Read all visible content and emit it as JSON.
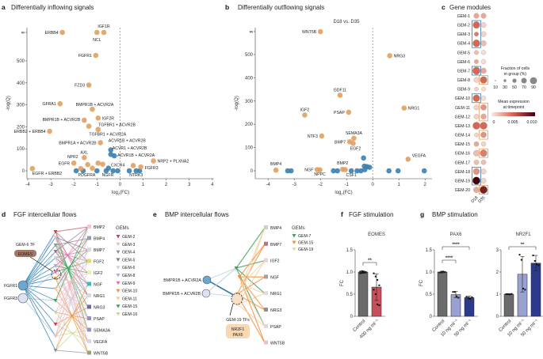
{
  "chart_data": [
    {
      "panel": "a",
      "type": "scatter",
      "title": "Differentially inflowing signals",
      "xlabel": "log2(FC)",
      "ylabel": "-log(Q)",
      "xlim": [
        -4,
        4
      ],
      "xticks": [
        -4,
        -3,
        -2,
        -1,
        0,
        1,
        2,
        3,
        4
      ],
      "yticks": [
        "0",
        "100",
        "200",
        "300",
        "400",
        "500",
        "∞"
      ],
      "ylim": [
        0,
        600
      ],
      "colors": {
        "significant": "#e0a060",
        "not_significant": "#3a7fb0"
      },
      "points": [
        {
          "label": "ERBB4",
          "x": -2.5,
          "y": "inf",
          "sig": true
        },
        {
          "label": "IGF1R",
          "x": -0.7,
          "y": "inf",
          "sig": true
        },
        {
          "label": "NCL",
          "x": -1.0,
          "y": "inf",
          "sig": true
        },
        {
          "label": "FGFR1",
          "x": -1.05,
          "y": 525,
          "sig": true
        },
        {
          "label": "FZD3",
          "x": -1.35,
          "y": 390,
          "sig": true
        },
        {
          "label": "GFRA1",
          "x": -2.6,
          "y": 305,
          "sig": true
        },
        {
          "label": "BMPR1B + ACVR2A",
          "x": -1.2,
          "y": 280,
          "sig": true
        },
        {
          "label": "BMPR1B + ACVR2B",
          "x": -1.55,
          "y": 230,
          "sig": true
        },
        {
          "label": "IGF2R",
          "x": -0.95,
          "y": 240,
          "sig": true
        },
        {
          "label": "TGFBR1 + ACVR2B",
          "x": -1.35,
          "y": 203,
          "sig": true
        },
        {
          "label": "ERBB2 + ERBB4",
          "x": -3.05,
          "y": 180,
          "sig": true
        },
        {
          "label": "TGFBR1 + ACVR2A",
          "x": -0.95,
          "y": 188,
          "sig": true
        },
        {
          "label": "BMPR1A + ACVR2B",
          "x": -0.85,
          "y": 128,
          "sig": true
        },
        {
          "label": "AXL",
          "x": -1.55,
          "y": 60,
          "sig": true
        },
        {
          "label": "NPR2",
          "x": -1.4,
          "y": 28,
          "sig": true
        },
        {
          "label": "EGFR",
          "x": -2.0,
          "y": 35,
          "sig": true
        },
        {
          "label": "EGFR + ERBB2",
          "x": -3.8,
          "y": 10,
          "sig": true
        },
        {
          "label": "NRP2 + PLXNA2",
          "x": 1.45,
          "y": 45,
          "sig": true
        },
        {
          "label": "FGFR3",
          "x": 0.9,
          "y": 18,
          "sig": true
        },
        {
          "label": "",
          "x": 0.57,
          "y": 24,
          "sig": true
        },
        {
          "label": "",
          "x": -1.7,
          "y": 10,
          "sig": true
        },
        {
          "label": "",
          "x": -1.2,
          "y": 12,
          "sig": true
        },
        {
          "label": "",
          "x": -0.95,
          "y": 35,
          "sig": true
        },
        {
          "label": "",
          "x": -0.75,
          "y": 30,
          "sig": true
        },
        {
          "label": "ACVR1B + ACVR2B",
          "x": -0.4,
          "y": 95,
          "sig": false
        },
        {
          "label": "ACVR1 + ACVR2B",
          "x": -0.4,
          "y": 75,
          "sig": false
        },
        {
          "label": "ACVR1B + ACVR2A",
          "x": -0.25,
          "y": 68,
          "sig": false
        },
        {
          "label": "CXCR4",
          "x": -0.5,
          "y": 12,
          "sig": false
        },
        {
          "label": "PDGFRA",
          "x": -1.0,
          "y": 0,
          "sig": false
        },
        {
          "label": "NGFR",
          "x": -0.6,
          "y": 0,
          "sig": false
        },
        {
          "label": "NTRK3",
          "x": 0.7,
          "y": 0,
          "sig": false
        },
        {
          "label": "",
          "x": -1.9,
          "y": 0,
          "sig": false
        },
        {
          "label": "",
          "x": -1.6,
          "y": 0,
          "sig": false
        },
        {
          "label": "",
          "x": -0.3,
          "y": 0,
          "sig": false
        },
        {
          "label": "",
          "x": -0.1,
          "y": 0,
          "sig": false
        },
        {
          "label": "",
          "x": 0.4,
          "y": 0,
          "sig": false
        },
        {
          "label": "",
          "x": 0.85,
          "y": 0,
          "sig": false
        }
      ]
    },
    {
      "panel": "b",
      "type": "scatter",
      "title": "Differentially outflowing signals",
      "subtitle": "D18 vs. D35",
      "xlabel": "log2(FC)",
      "ylabel": "-log(Q)",
      "xlim": [
        -4.4,
        2.3
      ],
      "xticks": [
        -4,
        -3,
        -2,
        -1,
        0,
        1,
        2
      ],
      "yticks": [
        "0",
        "100",
        "200",
        "300",
        "400",
        "500",
        "∞"
      ],
      "ylim": [
        0,
        600
      ],
      "points": [
        {
          "label": "WNT5B",
          "x": -2.0,
          "y": "inf",
          "sig": true
        },
        {
          "label": "NRG3",
          "x": 0.65,
          "y": 495,
          "sig": true
        },
        {
          "label": "GDF11",
          "x": -1.25,
          "y": 325,
          "sig": true
        },
        {
          "label": "NRG1",
          "x": 1.2,
          "y": 270,
          "sig": true
        },
        {
          "label": "IGF2",
          "x": -2.6,
          "y": 240,
          "sig": true
        },
        {
          "label": "PSAP",
          "x": -0.92,
          "y": 252,
          "sig": true
        },
        {
          "label": "NTF3",
          "x": -1.95,
          "y": 150,
          "sig": true
        },
        {
          "label": "SEMA3A",
          "x": -0.72,
          "y": 140,
          "sig": true
        },
        {
          "label": "BMP7",
          "x": -0.88,
          "y": 125,
          "sig": true
        },
        {
          "label": "EGF2",
          "x": -0.75,
          "y": 118,
          "sig": true
        },
        {
          "label": "VEGFA",
          "x": 1.35,
          "y": 50,
          "sig": true
        },
        {
          "label": "BMP4",
          "x": -3.7,
          "y": 3,
          "sig": true
        },
        {
          "label": "NGF",
          "x": -2.12,
          "y": 5,
          "sig": true
        },
        {
          "label": "NPPC",
          "x": -2.02,
          "y": 4,
          "sig": true
        },
        {
          "label": "BMP2",
          "x": -1.15,
          "y": 6,
          "sig": true
        },
        {
          "label": "",
          "x": -1.05,
          "y": 5,
          "sig": true
        },
        {
          "label": "CSF1",
          "x": -0.82,
          "y": 0,
          "sig": false
        },
        {
          "label": "",
          "x": -3.25,
          "y": 0,
          "sig": false
        },
        {
          "label": "",
          "x": -3.12,
          "y": 0,
          "sig": false
        },
        {
          "label": "",
          "x": -1.5,
          "y": 0,
          "sig": false
        },
        {
          "label": "",
          "x": -1.35,
          "y": 0,
          "sig": false
        },
        {
          "label": "",
          "x": -0.6,
          "y": 0,
          "sig": false
        },
        {
          "label": "",
          "x": -0.45,
          "y": 0,
          "sig": false
        },
        {
          "label": "",
          "x": -0.35,
          "y": 55,
          "sig": false
        },
        {
          "label": "",
          "x": -0.32,
          "y": 20,
          "sig": false
        },
        {
          "label": "",
          "x": -0.22,
          "y": 18,
          "sig": false
        },
        {
          "label": "",
          "x": -0.12,
          "y": 15,
          "sig": false
        },
        {
          "label": "",
          "x": -0.3,
          "y": 5,
          "sig": false
        },
        {
          "label": "",
          "x": 0.62,
          "y": 0,
          "sig": false
        },
        {
          "label": "",
          "x": 0.97,
          "y": 0,
          "sig": false
        },
        {
          "label": "",
          "x": 1.97,
          "y": 0,
          "sig": false
        }
      ]
    },
    {
      "panel": "c",
      "type": "heatmap",
      "title": "Gene modules",
      "columns": [
        "D18",
        "D35"
      ],
      "size_legend": {
        "title": "Fraction of cells in group (%)",
        "values": [
          "10",
          "30",
          "50",
          "70",
          "90"
        ]
      },
      "color_legend": {
        "title": "Mean expression at timepoint",
        "ticks": [
          "0",
          "0.005",
          "0.010"
        ]
      },
      "rows": [
        {
          "gem": "GEM-1",
          "d18": [
            50,
            0.003
          ],
          "d35": [
            50,
            0.003
          ]
        },
        {
          "gem": "GEM-2",
          "d18": [
            80,
            0.006
          ],
          "d35": [
            50,
            0.001
          ],
          "box": "D18"
        },
        {
          "gem": "GEM-3",
          "d18": [
            35,
            0.005
          ],
          "d35": [
            50,
            0.001
          ],
          "box": "D18"
        },
        {
          "gem": "GEM-4",
          "d18": [
            85,
            0.006
          ],
          "d35": [
            55,
            0.002
          ],
          "box": "D18"
        },
        {
          "gem": "GEM-5",
          "d18": [
            35,
            0.002
          ],
          "d35": [
            40,
            0.0005
          ]
        },
        {
          "gem": "GEM-6",
          "d18": [
            35,
            0.003
          ],
          "d35": [
            40,
            0.0005
          ]
        },
        {
          "gem": "GEM-7",
          "d18": [
            90,
            0.006
          ],
          "d35": [
            55,
            0.003
          ],
          "box": "D18"
        },
        {
          "gem": "GEM-8",
          "d18": [
            50,
            0.001
          ],
          "d35": [
            80,
            0.006
          ],
          "box": "D35"
        },
        {
          "gem": "GEM-9",
          "d18": [
            30,
            0.001
          ],
          "d35": [
            30,
            0.0005
          ]
        },
        {
          "gem": "GEM-10",
          "d18": [
            80,
            0.006
          ],
          "d35": [
            40,
            0.0005
          ],
          "box": "D18"
        },
        {
          "gem": "GEM-11",
          "d18": [
            50,
            0.001
          ],
          "d35": [
            60,
            0.004
          ],
          "box": "D35"
        },
        {
          "gem": "GEM-12",
          "d18": [
            45,
            0.001
          ],
          "d35": [
            55,
            0.003
          ],
          "box": "D35"
        },
        {
          "gem": "GEM-13",
          "d18": [
            85,
            0.006
          ],
          "d35": [
            85,
            0.006
          ]
        },
        {
          "gem": "GEM-14",
          "d18": [
            30,
            0.001
          ],
          "d35": [
            60,
            0.004
          ],
          "box": "D35"
        },
        {
          "gem": "GEM-15",
          "d18": [
            45,
            0.003
          ],
          "d35": [
            40,
            0.001
          ]
        },
        {
          "gem": "GEM-16",
          "d18": [
            65,
            0.002
          ],
          "d35": [
            80,
            0.005
          ],
          "box": "D35"
        },
        {
          "gem": "GEM-17",
          "d18": [
            45,
            0.002
          ],
          "d35": [
            45,
            0.002
          ]
        },
        {
          "gem": "GEM-18",
          "d18": [
            70,
            0.004
          ],
          "d35": [
            50,
            0.001
          ],
          "box": "D18"
        },
        {
          "gem": "GEM-19",
          "d18": [
            90,
            0.012
          ],
          "d35": [
            50,
            0.001
          ],
          "box": "D18"
        },
        {
          "gem": "GEM-20",
          "d18": [
            60,
            0.003
          ],
          "d35": [
            90,
            0.01
          ],
          "box": "D35"
        }
      ]
    },
    {
      "panel": "f",
      "type": "bar",
      "title": "FGF stimulation",
      "subtitle": "EOMES",
      "ylabel": "FC",
      "ylim": [
        0,
        1.5
      ],
      "yticks": [
        "0",
        "0.5",
        "1.0",
        "1.5"
      ],
      "categories": [
        "Control",
        "400 ng ml⁻¹"
      ],
      "values": [
        1.0,
        0.66
      ],
      "errors": [
        0.03,
        0.3
      ],
      "colors": [
        "#6b6b6b",
        "#c8505a"
      ],
      "points": [
        [
          0.97,
          0.98,
          0.99,
          1.0,
          1.01,
          1.02,
          1.0,
          0.99
        ],
        [
          0.97,
          0.9,
          0.82,
          0.7,
          0.6,
          0.5,
          0.27,
          0.25
        ]
      ],
      "significance": [
        {
          "pair": [
            0,
            1
          ],
          "label": "**"
        }
      ]
    },
    {
      "panel": "g",
      "type": "bar",
      "title": "BMP stimulation",
      "subtitle": "PAX6",
      "ylabel": "FC",
      "ylim": [
        0,
        1.5
      ],
      "yticks": [
        "0",
        "0.5",
        "1.0",
        "1.5"
      ],
      "categories": [
        "Control",
        "10 ng ml⁻¹",
        "50 ng ml⁻¹"
      ],
      "values": [
        1.0,
        0.49,
        0.42
      ],
      "errors": [
        0.02,
        0.07,
        0.04
      ],
      "colors": [
        "#6b6b6b",
        "#9aa0d0",
        "#2c3a8c"
      ],
      "points": [
        [
          0.99,
          1.0,
          1.01,
          1.0
        ],
        [
          0.55,
          0.55,
          0.45,
          0.42
        ],
        [
          0.44,
          0.42,
          0.4,
          0.43
        ]
      ],
      "significance": [
        {
          "pair": [
            0,
            1
          ],
          "label": "****"
        },
        {
          "pair": [
            0,
            2
          ],
          "label": "****"
        }
      ]
    },
    {
      "panel": "g",
      "type": "bar",
      "subtitle": "NR2F1",
      "ylim": [
        0,
        3
      ],
      "yticks": [
        "0",
        "1",
        "2",
        "3"
      ],
      "categories": [
        "Control",
        "10 ng ml⁻¹",
        "50 ng ml⁻¹"
      ],
      "values": [
        1.0,
        1.9,
        2.4
      ],
      "errors": [
        0.02,
        0.8,
        0.35
      ],
      "colors": [
        "#6b6b6b",
        "#9aa0d0",
        "#2c3a8c"
      ],
      "points": [
        [
          1.0,
          1.0,
          0.99,
          1.01
        ],
        [
          2.78,
          2.55,
          1.25,
          1.2
        ],
        [
          2.75,
          2.5,
          2.35,
          2.3
        ]
      ],
      "significance": [
        {
          "pair": [
            0,
            2
          ],
          "label": "**"
        }
      ]
    }
  ],
  "panel_d": {
    "letter": "d",
    "title": "FGF intercellular flows",
    "receptors": [
      "FGFR1",
      "FGFR3"
    ],
    "tf_label": "GEM-6 TF",
    "tf": "EOMES",
    "ligands": [
      "BMP2",
      "BMP4",
      "BMP7",
      "FGF2",
      "IGF2",
      "NGF",
      "NRG1",
      "NRG3",
      "PSAP",
      "SEMA3A",
      "VEGFA",
      "WNT5B"
    ],
    "ligand_colors": [
      "#f2c6d4",
      "#9a9aa8",
      "#d9d9e6",
      "#e2d870",
      "#eeeeb8",
      "#40b8c0",
      "#d0dcec",
      "#6a6aa0",
      "#9a90b8",
      "#a090c0",
      "#e0d0e8",
      "#a0a070"
    ],
    "gems_title": "GEMs",
    "gems": [
      {
        "name": "GEM-2",
        "color": "#d04050"
      },
      {
        "name": "GEM-3",
        "color": "#f0b8c0"
      },
      {
        "name": "GEM-4",
        "color": "#9090a8"
      },
      {
        "name": "GEM-5",
        "color": "#8a7a8a"
      },
      {
        "name": "GEM-6",
        "color": "#d8c8d8"
      },
      {
        "name": "GEM-8",
        "color": "#b8a8d8"
      },
      {
        "name": "GEM-9",
        "color": "#e070a0"
      },
      {
        "name": "GEM-10",
        "color": "#f09040"
      },
      {
        "name": "GEM-11",
        "color": "#f5c890"
      },
      {
        "name": "GEM-15",
        "color": "#40a060"
      },
      {
        "name": "GEM-16",
        "color": "#c8d890"
      }
    ]
  },
  "panel_e": {
    "letter": "e",
    "title": "BMP intercellular flows",
    "receptors": [
      "BMPR1B + ACVR2A",
      "BMPR1B + ACVR2B"
    ],
    "tf_label": "GEM-19 TFs",
    "tfs": [
      "NR2F1",
      "PAX6"
    ],
    "ligands": [
      "BMP4",
      "BMP7",
      "IGF2",
      "NGF",
      "NRG1",
      "NRG3",
      "PSAP",
      "WNT5B"
    ],
    "ligand_colors": [
      "#c8d8b0",
      "#c07080",
      "#f0d0d8",
      "#a0a0b0",
      "#e8d8e0",
      "#909090",
      "#e8d0e0",
      "#e8c0d0"
    ],
    "gems_title": "GEMs",
    "gems": [
      {
        "name": "GEM-7",
        "color": "#40a060"
      },
      {
        "name": "GEM-15",
        "color": "#f09040"
      },
      {
        "name": "GEM-19",
        "color": "#f5d0a0"
      }
    ]
  },
  "labels": {
    "a": "a",
    "b": "b",
    "c": "c",
    "f": "f",
    "g": "g"
  }
}
